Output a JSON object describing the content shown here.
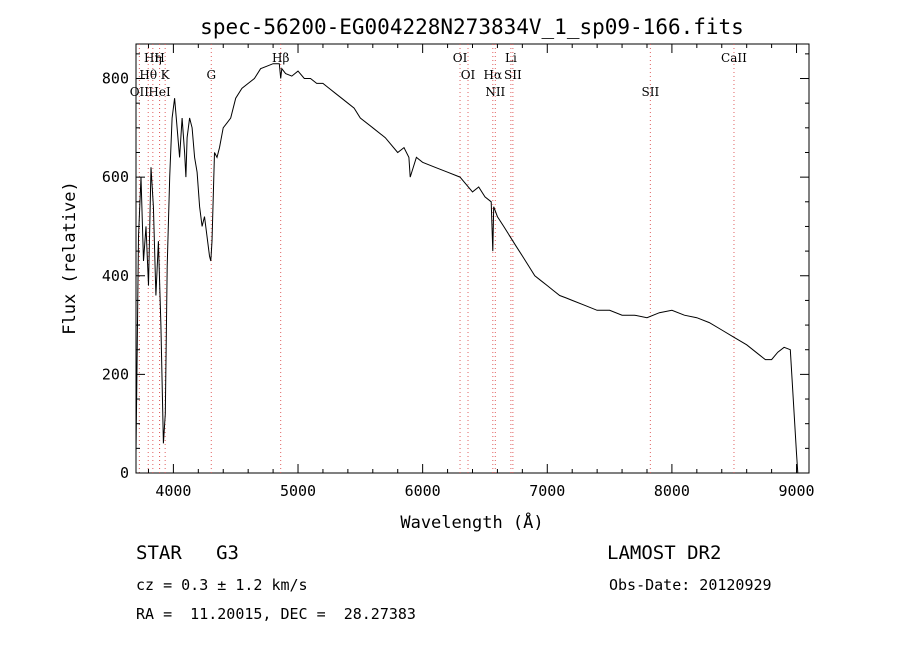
{
  "chart_data": {
    "type": "line",
    "title": "spec-56200-EG004228N273834V_1_sp09-166.fits",
    "xlabel": "Wavelength (Å)",
    "ylabel": "Flux (relative)",
    "xlim": [
      3700,
      9100
    ],
    "ylim": [
      0,
      870
    ],
    "xticks": [
      4000,
      5000,
      6000,
      7000,
      8000,
      9000
    ],
    "yticks": [
      0,
      200,
      400,
      600,
      800
    ],
    "grid": false,
    "line_color": "#000000",
    "marker_color": "#e06060",
    "series": [
      {
        "x": [
          3700,
          3720,
          3740,
          3760,
          3780,
          3800,
          3820,
          3840,
          3860,
          3880,
          3900,
          3920,
          3935,
          3950,
          3970,
          3990,
          4010,
          4030,
          4050,
          4070,
          4090,
          4100,
          4110,
          4130,
          4150,
          4170,
          4190,
          4210,
          4230,
          4250,
          4270,
          4290,
          4300,
          4310,
          4330,
          4350,
          4370,
          4400,
          4430,
          4460,
          4500,
          4550,
          4600,
          4650,
          4700,
          4750,
          4800,
          4850,
          4861,
          4870,
          4900,
          4950,
          5000,
          5050,
          5100,
          5150,
          5200,
          5250,
          5300,
          5350,
          5400,
          5450,
          5500,
          5600,
          5700,
          5800,
          5850,
          5890,
          5900,
          5950,
          6000,
          6100,
          6200,
          6300,
          6400,
          6450,
          6500,
          6550,
          6563,
          6570,
          6600,
          6650,
          6700,
          6750,
          6800,
          6850,
          6900,
          6950,
          7000,
          7050,
          7100,
          7150,
          7200,
          7300,
          7400,
          7500,
          7600,
          7700,
          7800,
          7900,
          8000,
          8100,
          8200,
          8300,
          8400,
          8500,
          8600,
          8700,
          8750,
          8800,
          8850,
          8900,
          8950,
          9000,
          9010
        ],
        "y": [
          40,
          480,
          600,
          430,
          500,
          380,
          620,
          540,
          360,
          470,
          300,
          60,
          120,
          420,
          600,
          720,
          760,
          700,
          640,
          720,
          650,
          600,
          680,
          720,
          700,
          640,
          610,
          540,
          500,
          520,
          480,
          440,
          430,
          470,
          650,
          640,
          660,
          700,
          710,
          720,
          760,
          780,
          790,
          800,
          820,
          825,
          830,
          830,
          800,
          820,
          810,
          805,
          815,
          800,
          800,
          790,
          790,
          780,
          770,
          760,
          750,
          740,
          720,
          700,
          680,
          650,
          660,
          640,
          600,
          640,
          630,
          620,
          610,
          600,
          570,
          580,
          560,
          550,
          450,
          540,
          520,
          500,
          480,
          460,
          440,
          420,
          400,
          390,
          380,
          370,
          360,
          355,
          350,
          340,
          330,
          330,
          320,
          320,
          315,
          325,
          330,
          320,
          315,
          305,
          290,
          275,
          260,
          240,
          230,
          230,
          245,
          255,
          250,
          40,
          0
        ]
      }
    ],
    "lines": [
      {
        "label": "Hη",
        "x": 3835,
        "row": 1
      },
      {
        "label": "H",
        "x": 3889,
        "row": 1
      },
      {
        "label": "Hθ",
        "x": 3798,
        "row": 2
      },
      {
        "label": "K",
        "x": 3934,
        "row": 2
      },
      {
        "label": "OII",
        "x": 3727,
        "row": 3
      },
      {
        "label": "HeI",
        "x": 3889,
        "row": 3
      },
      {
        "label": "G",
        "x": 4304,
        "row": 2
      },
      {
        "label": "Hβ",
        "x": 4861,
        "row": 1
      },
      {
        "label": "OI",
        "x": 6300,
        "row": 1
      },
      {
        "label": "OI",
        "x": 6364,
        "row": 2
      },
      {
        "label": "Hα",
        "x": 6563,
        "row": 2
      },
      {
        "label": "NII",
        "x": 6583,
        "row": 3
      },
      {
        "label": "Li",
        "x": 6708,
        "row": 1
      },
      {
        "label": "SII",
        "x": 6724,
        "row": 2
      },
      {
        "label": "SII",
        "x": 7827,
        "row": 3
      },
      {
        "label": "CaII",
        "x": 8498,
        "row": 1
      }
    ]
  },
  "info": {
    "object_type": "STAR   G3",
    "survey": "LAMOST DR2",
    "cz": "cz = 0.3 ± 1.2 km/s",
    "obs_date": "Obs-Date: 20120929",
    "coords": "RA =  11.20015, DEC =  28.27383"
  }
}
